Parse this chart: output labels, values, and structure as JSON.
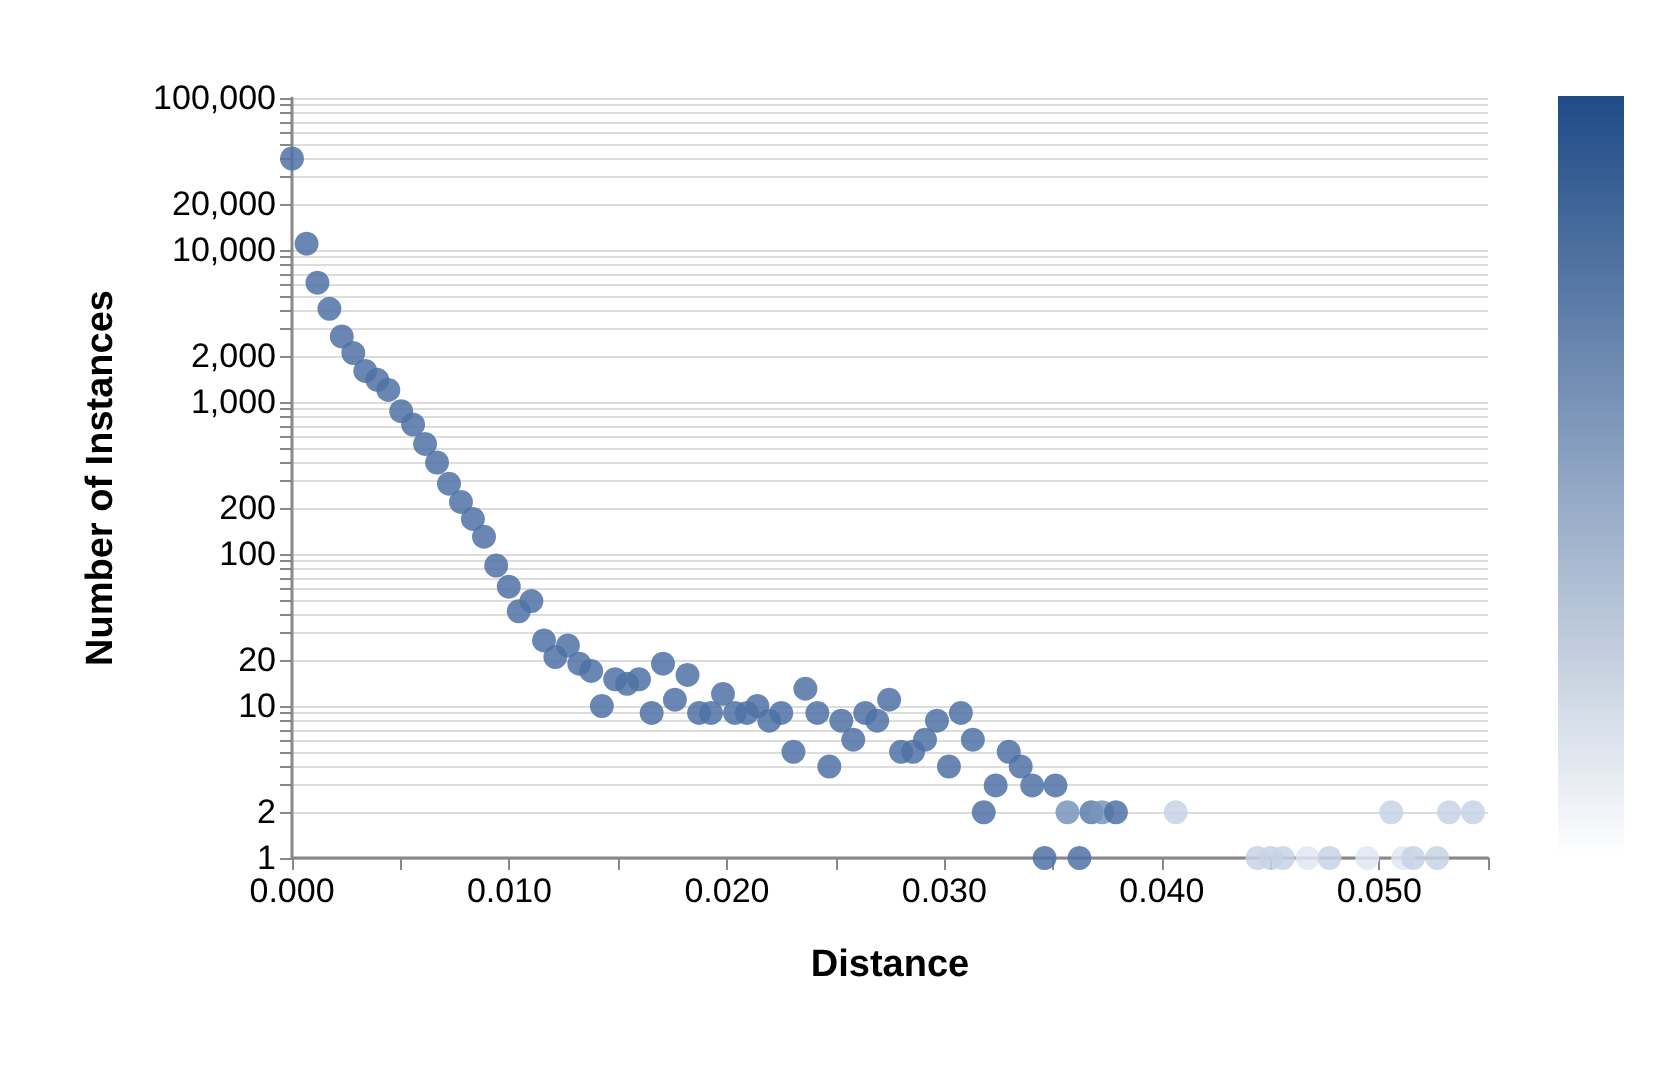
{
  "chart_data": {
    "type": "scatter",
    "xlabel": "Distance",
    "ylabel": "Number of Instances",
    "log": "y",
    "grid": "y",
    "marker": "circle",
    "xlim": [
      0,
      0.055
    ],
    "xticks": [
      {
        "value": 0,
        "label": "0.000"
      },
      {
        "value": 0.005,
        "label": null
      },
      {
        "value": 0.01,
        "label": "0.010"
      },
      {
        "value": 0.015,
        "label": null
      },
      {
        "value": 0.02,
        "label": "0.020"
      },
      {
        "value": 0.025,
        "label": null
      },
      {
        "value": 0.03,
        "label": "0.030"
      },
      {
        "value": 0.035,
        "label": null
      },
      {
        "value": 0.04,
        "label": "0.040"
      },
      {
        "value": 0.045,
        "label": null
      },
      {
        "value": 0.05,
        "label": "0.050"
      },
      {
        "value": 0.055,
        "label": null
      }
    ],
    "ylim": [
      1,
      100000
    ],
    "yticks": [
      1,
      2,
      {
        "value": 3,
        "label": null
      },
      {
        "value": 4,
        "label": null
      },
      {
        "value": 5,
        "label": null
      },
      {
        "value": 6,
        "label": null
      },
      {
        "value": 7,
        "label": null
      },
      {
        "value": 8,
        "label": null
      },
      {
        "value": 9,
        "label": null
      },
      10,
      20,
      {
        "value": 30,
        "label": null
      },
      {
        "value": 40,
        "label": null
      },
      {
        "value": 50,
        "label": null
      },
      {
        "value": 60,
        "label": null
      },
      {
        "value": 70,
        "label": null
      },
      {
        "value": 80,
        "label": null
      },
      {
        "value": 90,
        "label": null
      },
      100,
      200,
      {
        "value": 300,
        "label": null
      },
      {
        "value": 400,
        "label": null
      },
      {
        "value": 500,
        "label": null
      },
      {
        "value": 600,
        "label": null
      },
      {
        "value": 700,
        "label": null
      },
      {
        "value": 800,
        "label": null
      },
      {
        "value": 900,
        "label": null
      },
      {
        "value": 1000,
        "label": "1,000"
      },
      {
        "value": 2000,
        "label": "2,000"
      },
      {
        "value": 3000,
        "label": null
      },
      {
        "value": 4000,
        "label": null
      },
      {
        "value": 5000,
        "label": null
      },
      {
        "value": 6000,
        "label": null
      },
      {
        "value": 7000,
        "label": null
      },
      {
        "value": 8000,
        "label": null
      },
      {
        "value": 9000,
        "label": null
      },
      {
        "value": 10000,
        "label": "10,000"
      },
      {
        "value": 20000,
        "label": "20,000"
      },
      {
        "value": 30000,
        "label": null
      },
      {
        "value": 40000,
        "label": null
      },
      {
        "value": 50000,
        "label": null
      },
      {
        "value": 60000,
        "label": null
      },
      {
        "value": 70000,
        "label": null
      },
      {
        "value": 80000,
        "label": null
      },
      {
        "value": 90000,
        "label": null
      },
      {
        "value": 100000,
        "label": "100,000"
      }
    ],
    "x": [
      0,
      0.00067,
      0.00117,
      0.00172,
      0.00229,
      0.00282,
      0.00337,
      0.00392,
      0.00443,
      0.00502,
      0.00557,
      0.00612,
      0.00667,
      0.00722,
      0.00777,
      0.00832,
      0.00883,
      0.00939,
      0.00997,
      0.01043,
      0.01101,
      0.01159,
      0.01211,
      0.01269,
      0.01321,
      0.01376,
      0.01425,
      0.01486,
      0.01541,
      0.01596,
      0.01654,
      0.01706,
      0.01761,
      0.01819,
      0.01872,
      0.01927,
      0.01982,
      0.02037,
      0.02092,
      0.0214,
      0.02195,
      0.0225,
      0.02306,
      0.02361,
      0.02416,
      0.02471,
      0.02526,
      0.02581,
      0.02636,
      0.02691,
      0.02746,
      0.02801,
      0.02856,
      0.02911,
      0.02966,
      0.03021,
      0.03076,
      0.03131,
      0.03181,
      0.03236,
      0.03296,
      0.03351,
      0.03404,
      0.03461,
      0.03511,
      0.03566,
      0.03621,
      0.03676,
      0.03725,
      0.03789,
      0.04064,
      0.0444,
      0.04502,
      0.04557,
      0.0467,
      0.04771,
      0.04945,
      0.05055,
      0.0511,
      0.05156,
      0.05266,
      0.05321,
      0.05431
    ],
    "values": [
      40000,
      11000,
      6100,
      4100,
      2700,
      2100,
      1600,
      1400,
      1200,
      870,
      710,
      530,
      400,
      290,
      220,
      170,
      130,
      84,
      61,
      42,
      49,
      27,
      21,
      25,
      19,
      17,
      10,
      15,
      14,
      15,
      9,
      19,
      11,
      16,
      9,
      9,
      12,
      9,
      9,
      10,
      8,
      9,
      5,
      13,
      9,
      4,
      8,
      6,
      9,
      8,
      11,
      5,
      5,
      6,
      8,
      4,
      9,
      6,
      2,
      3,
      5,
      4,
      3,
      1,
      3,
      2,
      1,
      2,
      2,
      2,
      2,
      1,
      1,
      1,
      1,
      1,
      1,
      2,
      1,
      1,
      1,
      2,
      2
    ],
    "colors": [
      "#4f72a5",
      "#4f72a5",
      "#4f72a5",
      "#4f72a5",
      "#4f72a5",
      "#4f72a5",
      "#4f72a5",
      "#4f72a5",
      "#4f72a5",
      "#4f72a5",
      "#4f72a5",
      "#4f72a5",
      "#4f72a5",
      "#4f72a5",
      "#4f72a5",
      "#4f72a5",
      "#4f72a5",
      "#4f72a5",
      "#4f72a5",
      "#4f72a5",
      "#4f72a5",
      "#4f72a5",
      "#4f72a5",
      "#4f72a5",
      "#4f72a5",
      "#4f72a5",
      "#4f72a5",
      "#4f72a5",
      "#4f72a5",
      "#4f72a5",
      "#4f72a5",
      "#4f72a5",
      "#4f72a5",
      "#4f72a5",
      "#4f72a5",
      "#4f72a5",
      "#4f72a5",
      "#4f72a5",
      "#4f72a5",
      "#4f72a5",
      "#4f72a5",
      "#4f72a5",
      "#4f72a5",
      "#4f72a5",
      "#4f72a5",
      "#4f72a5",
      "#4f72a5",
      "#4f72a5",
      "#4f72a5",
      "#4f72a5",
      "#4f72a5",
      "#4f72a5",
      "#4f72a5",
      "#4f72a5",
      "#4f72a5",
      "#4f72a5",
      "#4f72a5",
      "#4f72a5",
      "#4f72a5",
      "#4f72a5",
      "#4f72a5",
      "#4f72a5",
      "#4f72a5",
      "#4f72a5",
      "#4f72a5",
      "#7895bd",
      "#4f72a5",
      "#5b7cad",
      "#7895bd",
      "#4f72a5",
      "#c5d3e6",
      "#c5d3e6",
      "#c5d3e6",
      "#c5d3e6",
      "#e1e8f2",
      "#c5d3e6",
      "#e1e8f2",
      "#c5d3e6",
      "#e1e8f2",
      "#c5d3e6",
      "#c5d3e6",
      "#c5d3e6",
      "#c5d3e6"
    ]
  }
}
